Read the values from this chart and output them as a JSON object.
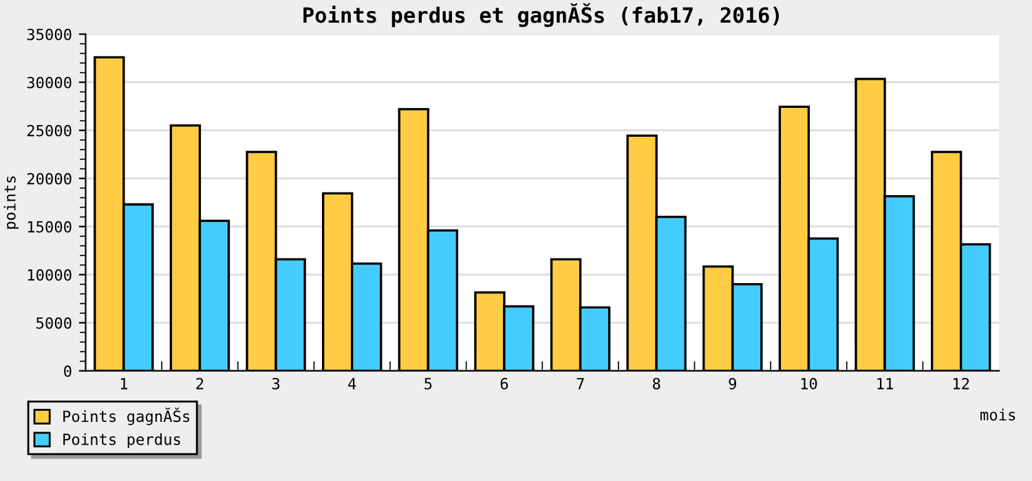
{
  "chart_data": {
    "type": "bar",
    "title": "Points perdus et gagnĂŠs (fab17, 2016)",
    "xlabel": "mois",
    "ylabel": "points",
    "categories": [
      "1",
      "2",
      "3",
      "4",
      "5",
      "6",
      "7",
      "8",
      "9",
      "10",
      "11",
      "12"
    ],
    "series": [
      {
        "name": "Points gagnĂŠs",
        "color": "#ffcc44",
        "values": [
          32600,
          25500,
          22750,
          18450,
          27200,
          8150,
          11600,
          24450,
          10850,
          27450,
          30350,
          22750
        ]
      },
      {
        "name": "Points perdus",
        "color": "#44ccff",
        "values": [
          17300,
          15600,
          11600,
          11150,
          14600,
          6700,
          6600,
          16000,
          9000,
          13750,
          18150,
          13150
        ]
      }
    ],
    "ylim": [
      0,
      35000
    ],
    "yticks": [
      0,
      5000,
      10000,
      15000,
      20000,
      25000,
      30000,
      35000
    ],
    "grid": "y",
    "legend": "bottom left"
  }
}
